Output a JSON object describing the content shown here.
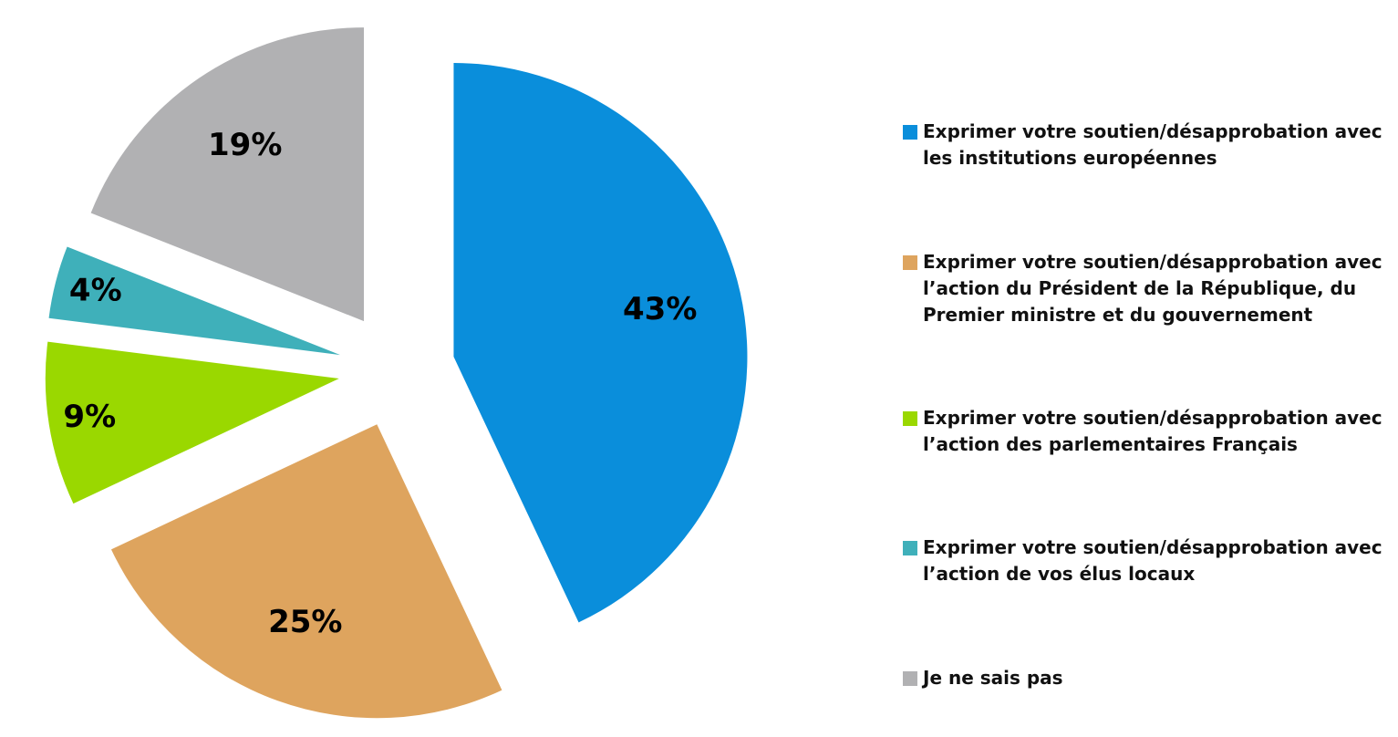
{
  "chart_data": {
    "type": "pie",
    "categories": [
      "Exprimer votre soutien/désapprobation avec les institutions européennes",
      "Exprimer votre soutien/désapprobation avec l’action du Président de la République, du Premier ministre et du gouvernement",
      "Exprimer votre soutien/désapprobation avec l’action des parlementaires Français",
      "Exprimer votre soutien/désapprobation avec l’action de vos élus locaux",
      "Je ne sais pas"
    ],
    "values": [
      43,
      25,
      9,
      4,
      19
    ],
    "value_labels": [
      "43%",
      "25%",
      "9%",
      "4%",
      "19%"
    ],
    "colors": [
      "#0a8edb",
      "#dea45e",
      "#9ad800",
      "#3fb0ba",
      "#b1b1b3"
    ],
    "legend": "right"
  }
}
